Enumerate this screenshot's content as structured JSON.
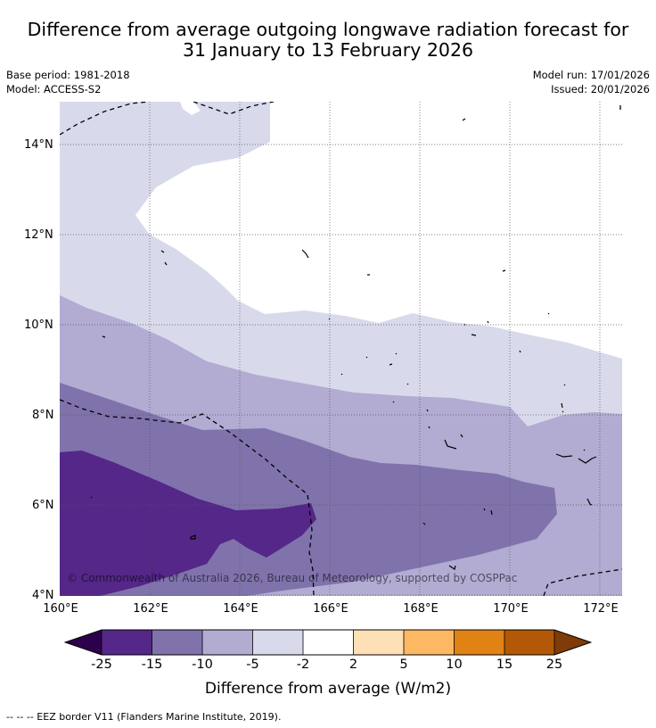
{
  "title": {
    "line1": "Difference from average outgoing longwave radiation forecast for",
    "line2": "31 January to 13 February 2026"
  },
  "meta": {
    "base_period": "Base period: 1981-2018",
    "model": "Model: ACCESS-S2",
    "model_run": "Model run: 17/01/2026",
    "issued": "Issued: 20/01/2026"
  },
  "map": {
    "lat_labels": [
      "14°N",
      "12°N",
      "10°N",
      "8°N",
      "6°N",
      "4°N"
    ],
    "lon_labels": [
      "160°E",
      "162°E",
      "164°E",
      "166°E",
      "168°E",
      "170°E",
      "172°E"
    ],
    "copyright": "© Commonwealth of Australia 2026, Bureau of Meteorology, supported by COSPPac",
    "colors": {
      "neg25_plus": "#2d004b",
      "neg25_neg15": "#542788",
      "neg15_neg10": "#8073ac",
      "neg10_neg5": "#b2abd2",
      "neg5_neg2": "#d8daeb",
      "neg2_2": "#ffffff",
      "p2_5": "#fee0b6",
      "p5_10": "#fdb863",
      "p10_15": "#e08214",
      "p15_25": "#b35806",
      "p25_plus": "#7f3b08"
    }
  },
  "colorbar": {
    "ticks": [
      "-25",
      "-15",
      "-10",
      "-5",
      "-2",
      "2",
      "5",
      "10",
      "15",
      "25"
    ],
    "label": "Difference from average (W/m2)"
  },
  "footnote": "--  --  -- EEZ border V11 (Flanders Marine Institute, 2019)."
}
